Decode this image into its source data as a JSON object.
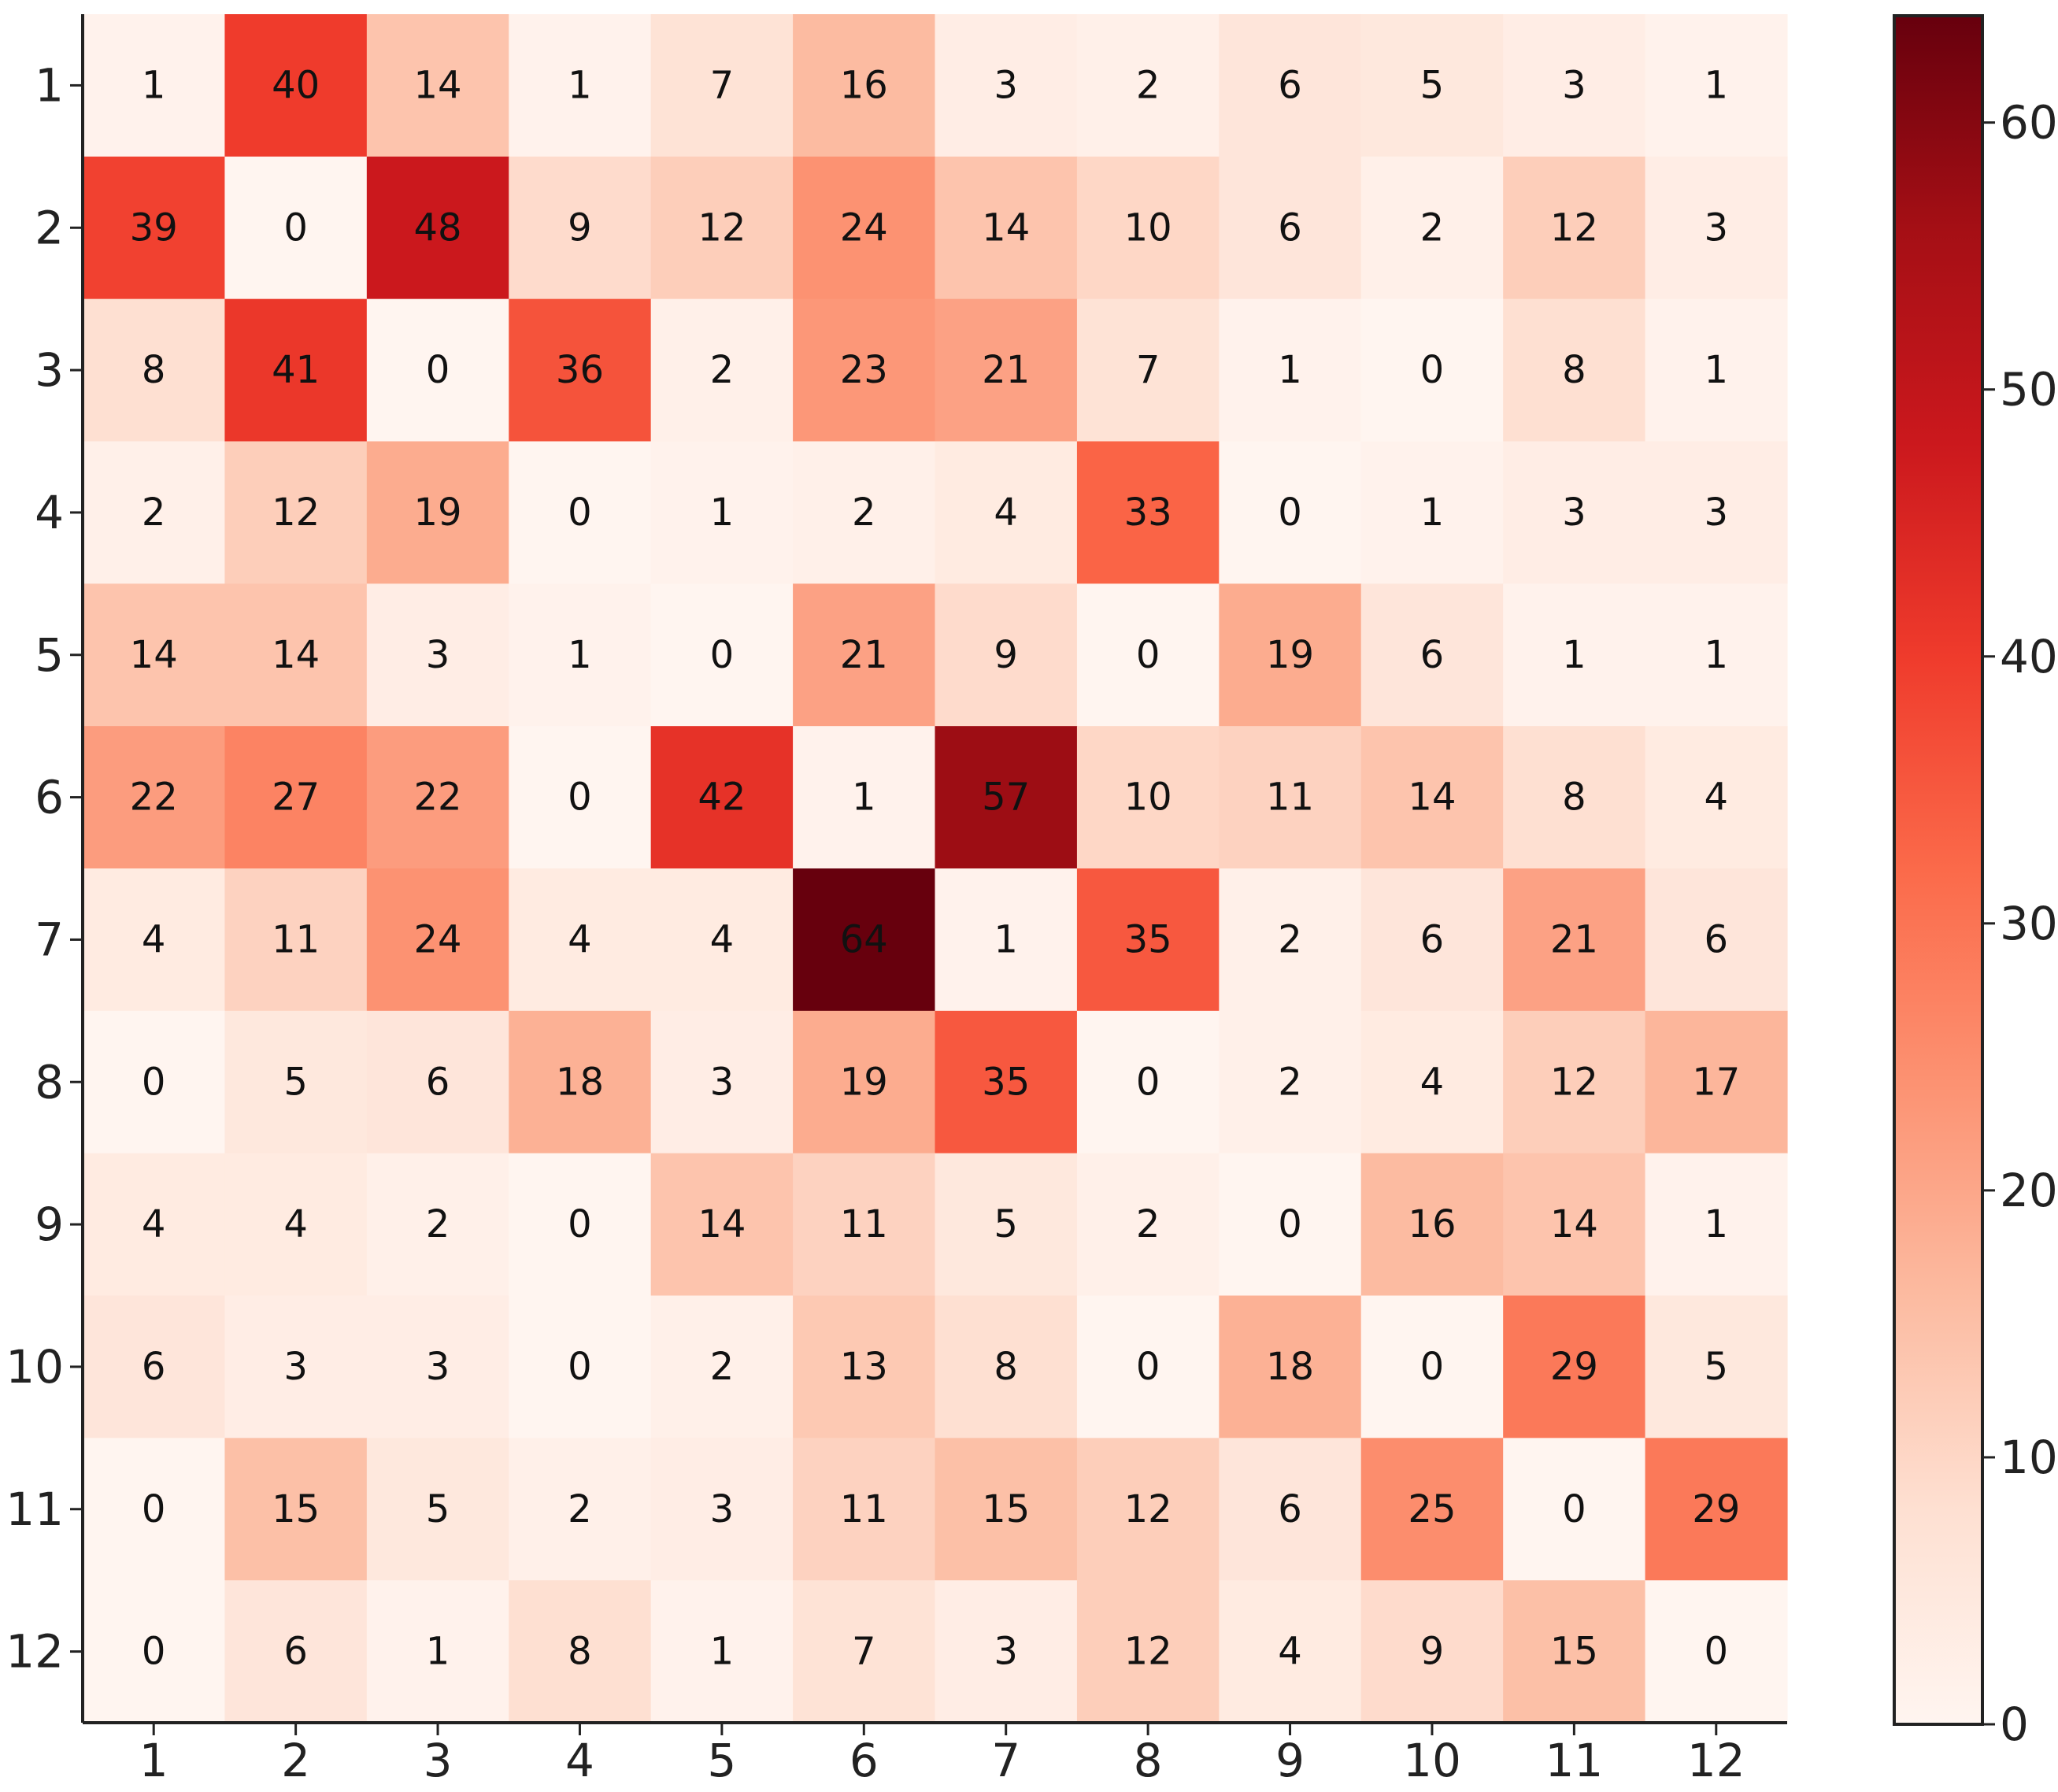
{
  "chart_data": {
    "type": "heatmap",
    "title": "",
    "xlabel": "",
    "ylabel": "",
    "x_categories": [
      "1",
      "2",
      "3",
      "4",
      "5",
      "6",
      "7",
      "8",
      "9",
      "10",
      "11",
      "12"
    ],
    "y_categories": [
      "1",
      "2",
      "3",
      "4",
      "5",
      "6",
      "7",
      "8",
      "9",
      "10",
      "11",
      "12"
    ],
    "values": [
      [
        1,
        40,
        14,
        1,
        7,
        16,
        3,
        2,
        6,
        5,
        3,
        1
      ],
      [
        39,
        0,
        48,
        9,
        12,
        24,
        14,
        10,
        6,
        2,
        12,
        3
      ],
      [
        8,
        41,
        0,
        36,
        2,
        23,
        21,
        7,
        1,
        0,
        8,
        1
      ],
      [
        2,
        12,
        19,
        0,
        1,
        2,
        4,
        33,
        0,
        1,
        3,
        3
      ],
      [
        14,
        14,
        3,
        1,
        0,
        21,
        9,
        0,
        19,
        6,
        1,
        1
      ],
      [
        22,
        27,
        22,
        0,
        42,
        1,
        57,
        10,
        11,
        14,
        8,
        4
      ],
      [
        4,
        11,
        24,
        4,
        4,
        64,
        1,
        35,
        2,
        6,
        21,
        6
      ],
      [
        0,
        5,
        6,
        18,
        3,
        19,
        35,
        0,
        2,
        4,
        12,
        17
      ],
      [
        4,
        4,
        2,
        0,
        14,
        11,
        5,
        2,
        0,
        16,
        14,
        1
      ],
      [
        6,
        3,
        3,
        0,
        2,
        13,
        8,
        0,
        18,
        0,
        29,
        5
      ],
      [
        0,
        15,
        5,
        2,
        3,
        11,
        15,
        12,
        6,
        25,
        0,
        29
      ],
      [
        0,
        6,
        1,
        8,
        1,
        7,
        3,
        12,
        4,
        9,
        15,
        0
      ]
    ],
    "color_scale": {
      "min": 0,
      "max": 64,
      "ticks": [
        0,
        10,
        20,
        30,
        40,
        50,
        60
      ],
      "colors": [
        "#fff5f0",
        "#fee0d2",
        "#fcbba1",
        "#fc9272",
        "#fb6a4a",
        "#ef3b2c",
        "#cb181d",
        "#a50f15",
        "#67000d"
      ]
    },
    "colorbar_position": "right",
    "grid": false,
    "annotations": "cell values shown in each cell"
  }
}
